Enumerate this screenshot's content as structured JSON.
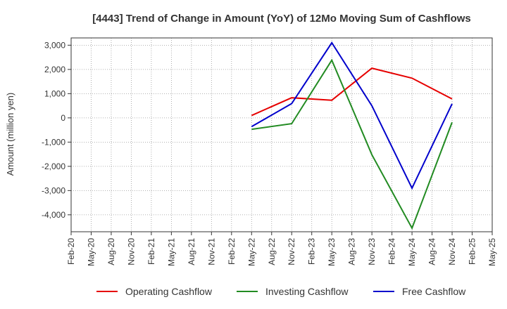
{
  "chart_data": {
    "type": "line",
    "title": "[4443]  Trend of Change in Amount (YoY) of 12Mo Moving Sum of Cashflows",
    "xlabel": "",
    "ylabel": "Amount (million yen)",
    "ylim": [
      -4700,
      3300
    ],
    "yticks": [
      3000,
      2000,
      1000,
      0,
      -1000,
      -2000,
      -3000,
      -4000
    ],
    "ytick_labels": [
      "3,000",
      "2,000",
      "1,000",
      "0",
      "-1,000",
      "-2,000",
      "-3,000",
      "-4,000"
    ],
    "categories": [
      "Feb-20",
      "May-20",
      "Aug-20",
      "Nov-20",
      "Feb-21",
      "May-21",
      "Aug-21",
      "Nov-21",
      "Feb-22",
      "May-22",
      "Aug-22",
      "Nov-22",
      "Feb-23",
      "May-23",
      "Aug-23",
      "Nov-23",
      "Feb-24",
      "May-24",
      "Aug-24",
      "Nov-24",
      "Feb-25",
      "May-25"
    ],
    "grid": true,
    "legend_position": "bottom",
    "series": [
      {
        "name": "Operating Cashflow",
        "color": "#e60000",
        "values": [
          null,
          null,
          null,
          null,
          null,
          null,
          null,
          null,
          null,
          100,
          null,
          830,
          null,
          730,
          null,
          2050,
          null,
          1640,
          null,
          780,
          null,
          null
        ]
      },
      {
        "name": "Investing Cashflow",
        "color": "#228B22",
        "values": [
          null,
          null,
          null,
          null,
          null,
          null,
          null,
          null,
          null,
          -470,
          null,
          -240,
          null,
          2380,
          null,
          -1520,
          null,
          -4550,
          null,
          -180,
          null,
          null
        ]
      },
      {
        "name": "Free Cashflow",
        "color": "#0000cc",
        "values": [
          null,
          null,
          null,
          null,
          null,
          null,
          null,
          null,
          null,
          -360,
          null,
          590,
          null,
          3100,
          null,
          500,
          null,
          -2900,
          null,
          580,
          null,
          null
        ]
      }
    ]
  }
}
